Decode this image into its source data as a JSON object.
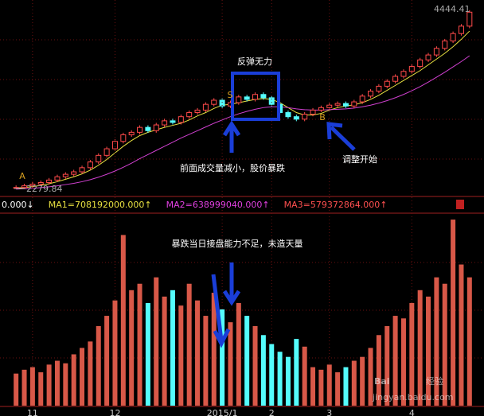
{
  "chart_data": [
    {
      "type": "candlestick",
      "categories": [
        null,
        null,
        "11",
        null,
        null,
        null,
        null,
        null,
        null,
        null,
        null,
        null,
        "12",
        null,
        null,
        null,
        null,
        null,
        null,
        null,
        null,
        null,
        null,
        null,
        null,
        "2015/1",
        null,
        null,
        null,
        null,
        null,
        "2",
        null,
        null,
        null,
        null,
        null,
        null,
        "3",
        null,
        null,
        null,
        null,
        null,
        null,
        null,
        null,
        null,
        "4",
        null,
        null,
        null,
        null,
        null,
        null,
        null
      ],
      "open": [
        2285,
        2290,
        2310,
        2330,
        2350,
        2380,
        2420,
        2450,
        2480,
        2530,
        2600,
        2680,
        2760,
        2850,
        2930,
        2960,
        3020,
        2980,
        3050,
        3100,
        3080,
        3150,
        3200,
        3230,
        3300,
        3350,
        3280,
        3320,
        3390,
        3360,
        3420,
        3380,
        3300,
        3200,
        3150,
        3120,
        3180,
        3230,
        3260,
        3290,
        3310,
        3280,
        3330,
        3400,
        3460,
        3520,
        3580,
        3640,
        3700,
        3760,
        3840,
        3900,
        3980,
        4070,
        4160,
        4250
      ],
      "close": [
        2290,
        2310,
        2330,
        2350,
        2380,
        2420,
        2450,
        2480,
        2530,
        2600,
        2680,
        2760,
        2850,
        2930,
        2960,
        3020,
        2980,
        3050,
        3100,
        3080,
        3150,
        3200,
        3230,
        3300,
        3350,
        3280,
        3320,
        3390,
        3360,
        3420,
        3380,
        3300,
        3200,
        3150,
        3120,
        3180,
        3230,
        3260,
        3290,
        3310,
        3280,
        3330,
        3400,
        3460,
        3520,
        3580,
        3640,
        3700,
        3760,
        3840,
        3900,
        3980,
        4070,
        4160,
        4250,
        4420
      ],
      "high": [
        2315,
        2335,
        2355,
        2375,
        2405,
        2445,
        2475,
        2505,
        2555,
        2625,
        2705,
        2785,
        2875,
        2955,
        2985,
        3045,
        3045,
        3075,
        3125,
        3125,
        3175,
        3225,
        3255,
        3325,
        3375,
        3375,
        3345,
        3415,
        3415,
        3445,
        3445,
        3405,
        3325,
        3225,
        3175,
        3205,
        3255,
        3285,
        3315,
        3335,
        3335,
        3355,
        3425,
        3485,
        3545,
        3605,
        3665,
        3725,
        3785,
        3865,
        3925,
        4005,
        4095,
        4185,
        4275,
        4444.41
      ],
      "low": [
        2279.84,
        2284,
        2285,
        2305,
        2325,
        2355,
        2395,
        2425,
        2455,
        2505,
        2575,
        2655,
        2735,
        2825,
        2905,
        2935,
        2955,
        2955,
        3025,
        3055,
        3055,
        3125,
        3175,
        3205,
        3275,
        3255,
        3255,
        3295,
        3335,
        3335,
        3355,
        3275,
        3175,
        3125,
        3095,
        3095,
        3155,
        3205,
        3235,
        3265,
        3255,
        3255,
        3305,
        3375,
        3435,
        3495,
        3555,
        3615,
        3675,
        3735,
        3815,
        3875,
        3955,
        4045,
        4135,
        4225
      ],
      "lines": [
        {
          "color": "#e8e040",
          "values": [
            2285,
            2288,
            2300,
            2315,
            2335,
            2360,
            2390,
            2420,
            2455,
            2500,
            2560,
            2630,
            2710,
            2790,
            2860,
            2920,
            2960,
            2990,
            3020,
            3045,
            3070,
            3110,
            3160,
            3200,
            3250,
            3290,
            3300,
            3320,
            3340,
            3360,
            3370,
            3360,
            3320,
            3260,
            3200,
            3170,
            3170,
            3190,
            3230,
            3260,
            3280,
            3295,
            3320,
            3360,
            3410,
            3470,
            3530,
            3590,
            3650,
            3710,
            3780,
            3850,
            3920,
            4000,
            4090,
            4190
          ]
        },
        {
          "color": "#d040d0",
          "values": [
            2270,
            2275,
            2280,
            2288,
            2298,
            2310,
            2325,
            2340,
            2360,
            2385,
            2415,
            2450,
            2490,
            2535,
            2585,
            2640,
            2690,
            2740,
            2790,
            2840,
            2890,
            2935,
            2980,
            3025,
            3070,
            3110,
            3150,
            3185,
            3215,
            3240,
            3260,
            3270,
            3270,
            3260,
            3245,
            3235,
            3230,
            3230,
            3235,
            3240,
            3245,
            3255,
            3270,
            3290,
            3315,
            3345,
            3380,
            3420,
            3465,
            3515,
            3570,
            3630,
            3690,
            3755,
            3820,
            3890
          ]
        }
      ],
      "up_color": "#ff4a4a",
      "down_color": "#54fcfc",
      "ylim": [
        2200,
        4500
      ],
      "high_label": "4444.41",
      "low_label": "2279.84",
      "markers": [
        "A",
        "S",
        "B"
      ],
      "annotations": [
        "反弹无力",
        "前面成交量减小，股价暴跌",
        "调整开始"
      ]
    },
    {
      "type": "bar",
      "values": [
        250000000,
        280000000,
        300000000,
        260000000,
        320000000,
        350000000,
        330000000,
        400000000,
        450000000,
        500000000,
        620000000,
        700000000,
        820000000,
        1330000000,
        900000000,
        950000000,
        800000000,
        1000000000,
        850000000,
        900000000,
        780000000,
        950000000,
        820000000,
        700000000,
        880000000,
        750000000,
        650000000,
        800000000,
        700000000,
        620000000,
        550000000,
        480000000,
        420000000,
        380000000,
        520000000,
        460000000,
        300000000,
        280000000,
        320000000,
        260000000,
        300000000,
        350000000,
        380000000,
        450000000,
        550000000,
        620000000,
        700000000,
        680000000,
        800000000,
        900000000,
        850000000,
        1000000000,
        950000000,
        1450000000,
        1100000000,
        1000000000
      ],
      "ylim": [
        0,
        1500000000
      ],
      "legend": [
        "0.000↓",
        "MA1=708192000.000↑",
        "MA2=638999040.000↑",
        "MA3=579372864.000↑"
      ],
      "legend_colors": [
        "#ffffff",
        "#e8e040",
        "#e040e0",
        "#ff5050"
      ],
      "annotations": [
        "暴跌当日接盘能力不足，未造天量"
      ]
    }
  ],
  "watermark": {
    "brand": "Bai",
    "product": "经验",
    "url": "jingyan.baidu.com"
  }
}
